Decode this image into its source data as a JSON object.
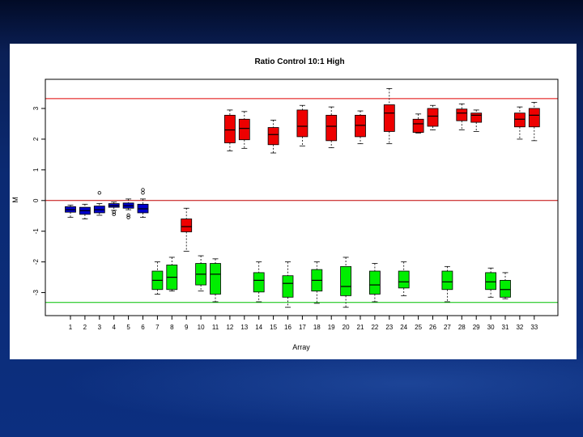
{
  "chart_data": {
    "type": "boxplot",
    "title": "Ratio Control 10:1 High",
    "xlabel": "Array",
    "ylabel": "M",
    "ylim": [
      -3.75,
      3.95
    ],
    "yticks": [
      -3,
      -2,
      -1,
      0,
      1,
      2,
      3
    ],
    "ytick_labels": [
      "-3",
      "-2",
      "-1",
      "0",
      "1",
      "2",
      "3"
    ],
    "reference_lines": [
      {
        "y": 3.32,
        "color": "#e00000"
      },
      {
        "y": 0,
        "color": "#c00000"
      },
      {
        "y": -3.32,
        "color": "#00c000"
      }
    ],
    "colors": {
      "blue": "#0000cc",
      "red": "#ee0000",
      "green": "#00ee00"
    },
    "boxes": [
      {
        "x": 1,
        "color": "blue",
        "min": -0.55,
        "q1": -0.38,
        "median": -0.3,
        "q3": -0.2,
        "max": -0.15,
        "outliers": []
      },
      {
        "x": 2,
        "color": "blue",
        "min": -0.6,
        "q1": -0.45,
        "median": -0.33,
        "q3": -0.22,
        "max": -0.12,
        "outliers": []
      },
      {
        "x": 3,
        "color": "blue",
        "min": -0.48,
        "q1": -0.4,
        "median": -0.3,
        "q3": -0.18,
        "max": -0.1,
        "outliers": [
          0.25
        ]
      },
      {
        "x": 4,
        "color": "blue",
        "min": -0.32,
        "q1": -0.22,
        "median": -0.17,
        "q3": -0.1,
        "max": -0.05,
        "outliers": [
          -0.38,
          -0.45
        ]
      },
      {
        "x": 5,
        "color": "blue",
        "min": -0.3,
        "q1": -0.25,
        "median": -0.17,
        "q3": -0.08,
        "max": 0.05,
        "outliers": [
          -0.48,
          -0.55
        ]
      },
      {
        "x": 6,
        "color": "blue",
        "min": -0.55,
        "q1": -0.4,
        "median": -0.27,
        "q3": -0.12,
        "max": 0.05,
        "outliers": [
          0.25,
          0.35
        ]
      },
      {
        "x": 7,
        "color": "green",
        "min": -3.05,
        "q1": -2.9,
        "median": -2.6,
        "q3": -2.3,
        "max": -2.0,
        "outliers": []
      },
      {
        "x": 8,
        "color": "green",
        "min": -2.95,
        "q1": -2.9,
        "median": -2.5,
        "q3": -2.1,
        "max": -1.85,
        "outliers": []
      },
      {
        "x": 9,
        "color": "red",
        "min": -1.65,
        "q1": -1.02,
        "median": -0.85,
        "q3": -0.6,
        "max": -0.25,
        "outliers": []
      },
      {
        "x": 10,
        "color": "green",
        "min": -2.95,
        "q1": -2.75,
        "median": -2.4,
        "q3": -2.05,
        "max": -1.8,
        "outliers": []
      },
      {
        "x": 11,
        "color": "green",
        "min": -3.3,
        "q1": -3.05,
        "median": -2.4,
        "q3": -2.05,
        "max": -1.9,
        "outliers": []
      },
      {
        "x": 12,
        "color": "red",
        "min": 1.62,
        "q1": 1.88,
        "median": 2.3,
        "q3": 2.78,
        "max": 2.95,
        "outliers": []
      },
      {
        "x": 13,
        "color": "red",
        "min": 1.7,
        "q1": 1.98,
        "median": 2.35,
        "q3": 2.65,
        "max": 2.9,
        "outliers": []
      },
      {
        "x": 14,
        "color": "green",
        "min": -3.3,
        "q1": -2.98,
        "median": -2.6,
        "q3": -2.35,
        "max": -2.0,
        "outliers": []
      },
      {
        "x": 15,
        "color": "red",
        "min": 1.55,
        "q1": 1.82,
        "median": 2.15,
        "q3": 2.38,
        "max": 2.62,
        "outliers": []
      },
      {
        "x": 16,
        "color": "green",
        "min": -3.48,
        "q1": -3.15,
        "median": -2.7,
        "q3": -2.45,
        "max": -2.0,
        "outliers": []
      },
      {
        "x": 17,
        "color": "red",
        "min": 1.78,
        "q1": 2.08,
        "median": 2.42,
        "q3": 2.95,
        "max": 3.1,
        "outliers": []
      },
      {
        "x": 18,
        "color": "green",
        "min": -3.35,
        "q1": -2.95,
        "median": -2.6,
        "q3": -2.25,
        "max": -2.0,
        "outliers": []
      },
      {
        "x": 19,
        "color": "red",
        "min": 1.72,
        "q1": 1.95,
        "median": 2.42,
        "q3": 2.78,
        "max": 3.05,
        "outliers": []
      },
      {
        "x": 20,
        "color": "green",
        "min": -3.48,
        "q1": -3.1,
        "median": -2.8,
        "q3": -2.15,
        "max": -1.85,
        "outliers": []
      },
      {
        "x": 21,
        "color": "red",
        "min": 1.85,
        "q1": 2.08,
        "median": 2.45,
        "q3": 2.78,
        "max": 2.92,
        "outliers": []
      },
      {
        "x": 22,
        "color": "green",
        "min": -3.3,
        "q1": -3.05,
        "median": -2.75,
        "q3": -2.3,
        "max": -2.05,
        "outliers": []
      },
      {
        "x": 23,
        "color": "red",
        "min": 1.85,
        "q1": 2.25,
        "median": 2.85,
        "q3": 3.12,
        "max": 3.65,
        "outliers": []
      },
      {
        "x": 24,
        "color": "green",
        "min": -3.1,
        "q1": -2.85,
        "median": -2.65,
        "q3": -2.3,
        "max": -2.0,
        "outliers": []
      },
      {
        "x": 25,
        "color": "red",
        "min": 2.2,
        "q1": 2.22,
        "median": 2.5,
        "q3": 2.65,
        "max": 2.82,
        "outliers": []
      },
      {
        "x": 26,
        "color": "red",
        "min": 2.3,
        "q1": 2.42,
        "median": 2.75,
        "q3": 3.0,
        "max": 3.1,
        "outliers": []
      },
      {
        "x": 27,
        "color": "green",
        "min": -3.3,
        "q1": -2.9,
        "median": -2.65,
        "q3": -2.3,
        "max": -2.15,
        "outliers": []
      },
      {
        "x": 28,
        "color": "red",
        "min": 2.3,
        "q1": 2.6,
        "median": 2.85,
        "q3": 2.98,
        "max": 3.15,
        "outliers": []
      },
      {
        "x": 29,
        "color": "red",
        "min": 2.25,
        "q1": 2.55,
        "median": 2.78,
        "q3": 2.85,
        "max": 2.95,
        "outliers": []
      },
      {
        "x": 30,
        "color": "green",
        "min": -3.15,
        "q1": -2.9,
        "median": -2.65,
        "q3": -2.35,
        "max": -2.2,
        "outliers": []
      },
      {
        "x": 31,
        "color": "green",
        "min": -3.2,
        "q1": -3.15,
        "median": -2.9,
        "q3": -2.6,
        "max": -2.35,
        "outliers": []
      },
      {
        "x": 32,
        "color": "red",
        "min": 2.0,
        "q1": 2.4,
        "median": 2.65,
        "q3": 2.85,
        "max": 3.05,
        "outliers": []
      },
      {
        "x": 33,
        "color": "red",
        "min": 1.95,
        "q1": 2.4,
        "median": 2.78,
        "q3": 3.0,
        "max": 3.2,
        "outliers": []
      }
    ]
  }
}
